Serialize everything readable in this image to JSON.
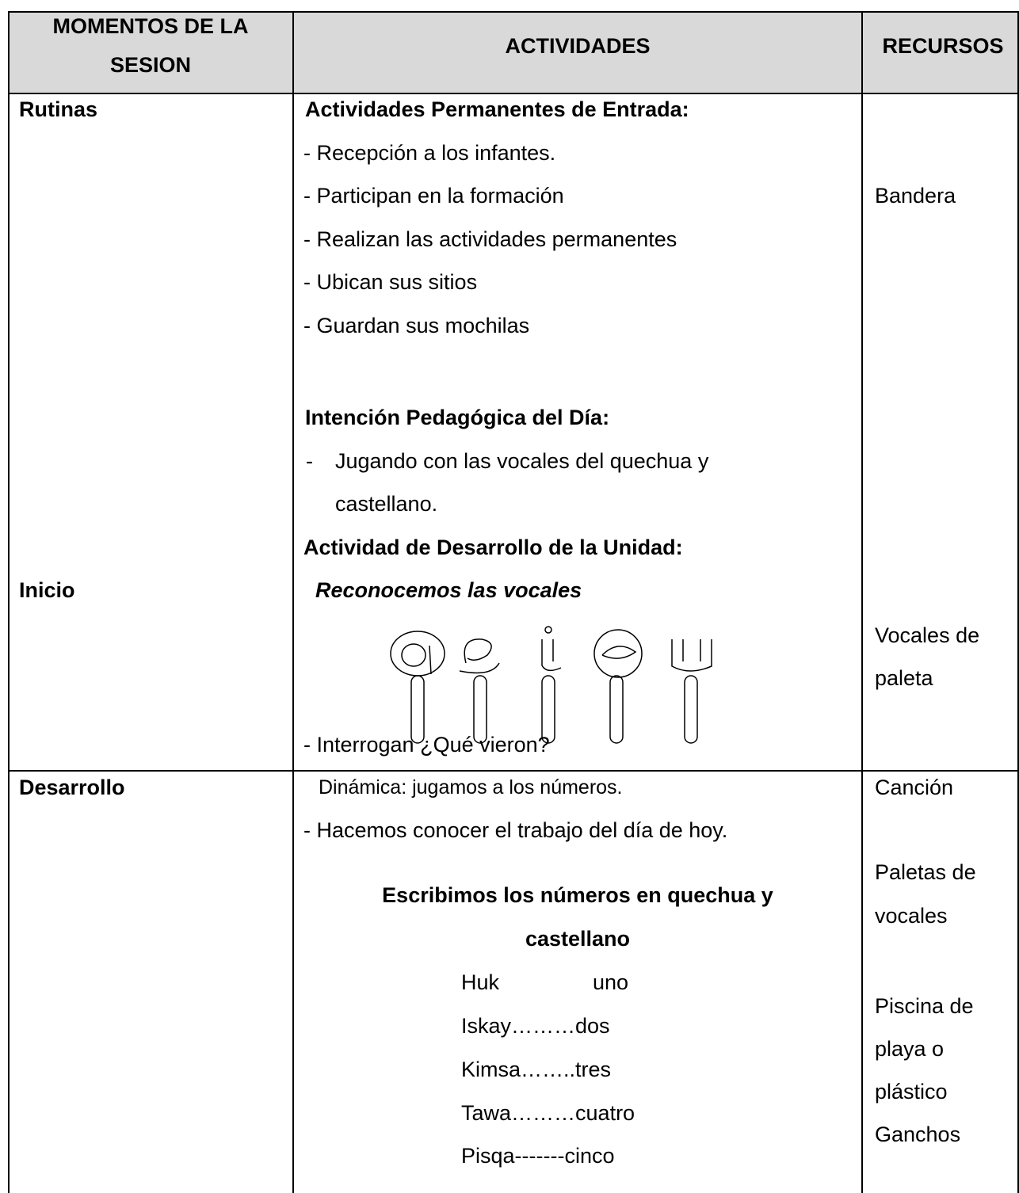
{
  "header": {
    "moments": [
      "MOMENTOS DE LA",
      "SESION"
    ],
    "activities": "ACTIVIDADES",
    "resources": "RECURSOS"
  },
  "rows": [
    {
      "moments": [
        "Rutinas",
        "Inicio"
      ],
      "activities": {
        "heading1": "Actividades Permanentes de Entrada:",
        "items1": [
          "- Recepción a los infantes.",
          "- Participan en la formación",
          "- Realizan las actividades permanentes",
          "- Ubican sus sitios",
          "- Guardan sus mochilas"
        ],
        "heading2": "Intención Pedagógica del Día:",
        "items2": [
          "-",
          "Jugando con las vocales del quechua y",
          "castellano."
        ],
        "heading3": "Actividad de Desarrollo de la Unidad:",
        "subtitle": "Reconocemos las vocales",
        "items3": [
          "- Interrogan ¿Qué vieron?"
        ]
      },
      "resources": [
        "Bandera",
        "Vocales de",
        "paleta"
      ]
    },
    {
      "moments": [
        "Desarrollo"
      ],
      "activities": {
        "items1": [
          "Dinámica: jugamos a los números.",
          "- Hacemos conocer el trabajo del día de hoy."
        ],
        "heading1": [
          "Escribimos los números en quechua y",
          "castellano"
        ],
        "numbers": [
          [
            "Huk",
            "uno"
          ],
          [
            "Iskay………dos"
          ],
          [
            "Kimsa……..tres"
          ],
          [
            "Tawa………cuatro"
          ],
          [
            "Pisqa-------cinco"
          ]
        ]
      },
      "resources": [
        "Canción",
        "Paletas de",
        "vocales",
        "Piscina de",
        "playa o",
        "plástico",
        "Ganchos"
      ]
    }
  ]
}
